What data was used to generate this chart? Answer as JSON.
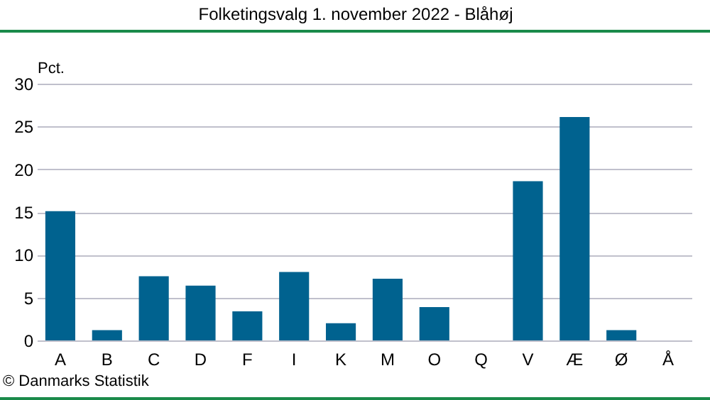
{
  "chart_data": {
    "type": "bar",
    "title": "Folketingsvalg 1. november 2022 - Blåhøj",
    "ylabel": "Pct.",
    "categories": [
      "A",
      "B",
      "C",
      "D",
      "F",
      "I",
      "K",
      "M",
      "O",
      "Q",
      "V",
      "Æ",
      "Ø",
      "Å"
    ],
    "values": [
      15.1,
      1.2,
      7.5,
      6.4,
      3.4,
      8.0,
      2.0,
      7.2,
      3.9,
      0,
      18.6,
      26.1,
      1.2,
      0
    ],
    "color": "#00628f",
    "ylim": [
      0,
      30
    ],
    "yticks": [
      0,
      5,
      10,
      15,
      20,
      25,
      30
    ],
    "grid": "y",
    "annotations": [
      "© Danmarks Statistik"
    ]
  }
}
